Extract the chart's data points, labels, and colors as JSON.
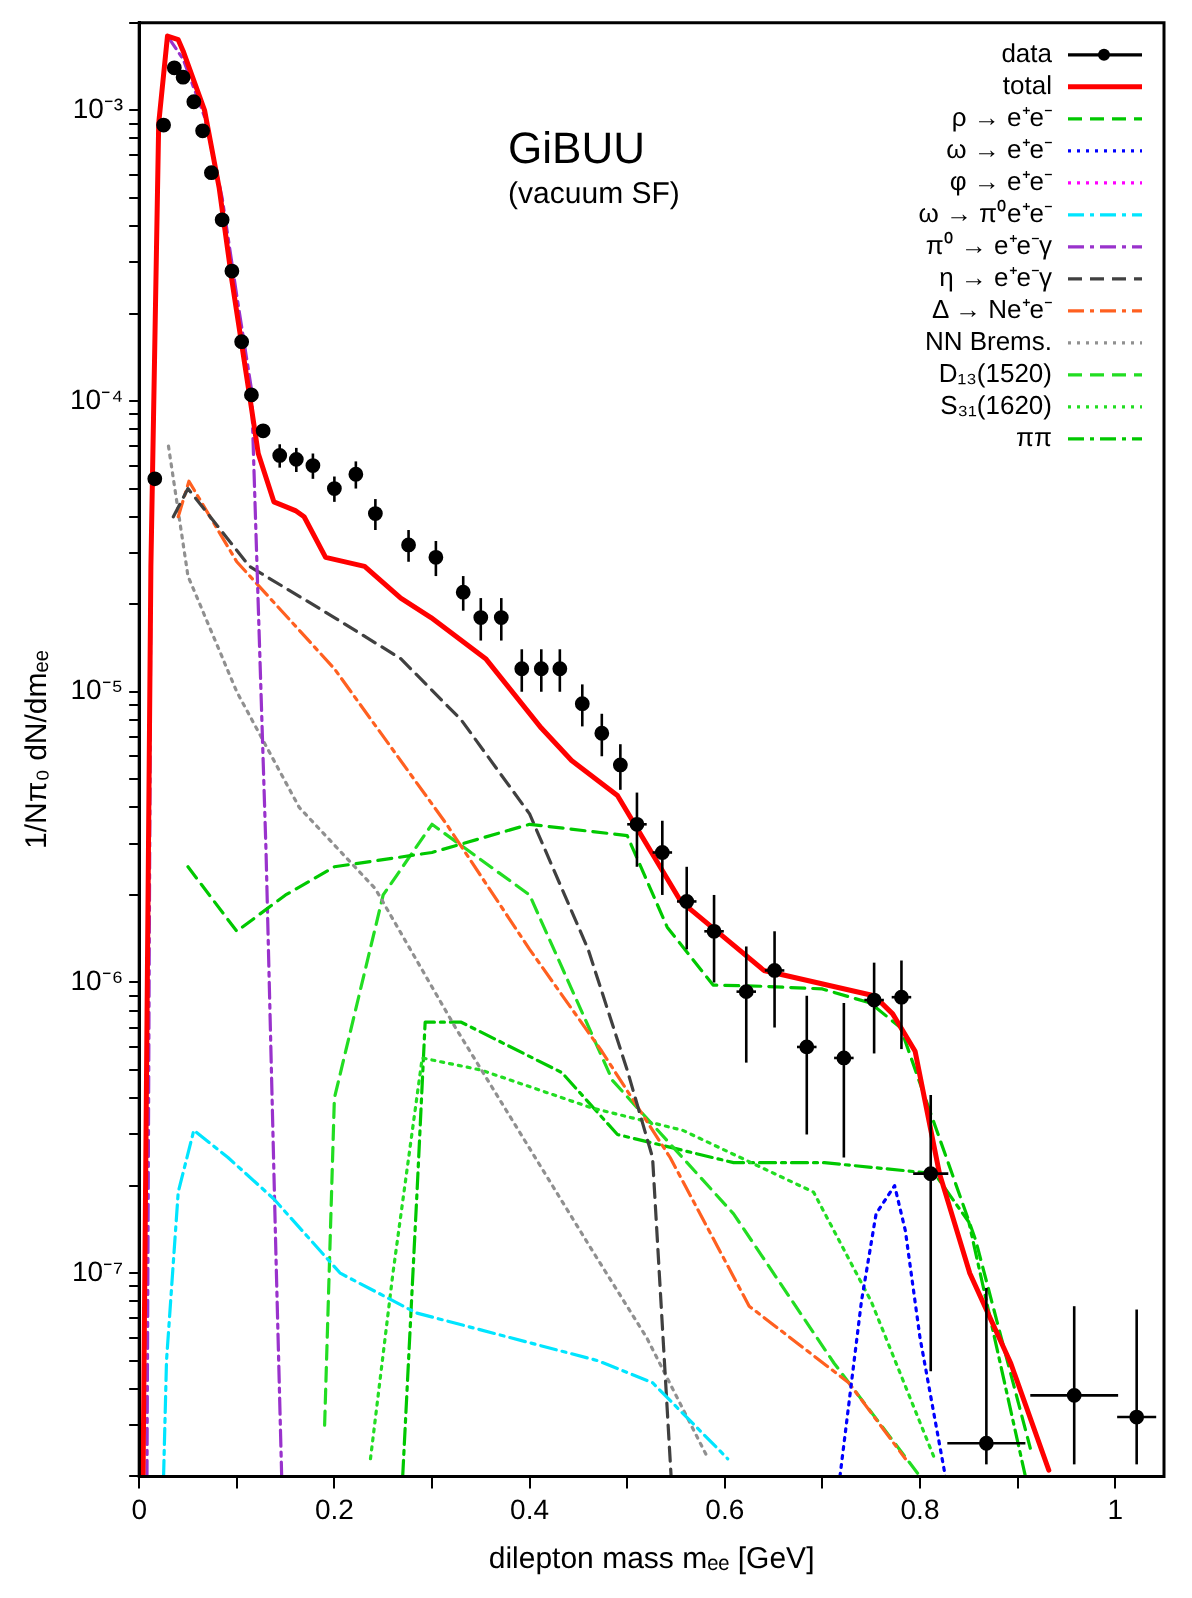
{
  "chart_data": {
    "type": "line",
    "xlabel": "dilepton mass mₑₑ [GeV]",
    "ylabel": "1/Nπ₀ dN/dmₑₑ",
    "log": "y",
    "grid": false,
    "legend": "top right",
    "xlim": [
      0,
      1.05
    ],
    "xticks": [
      0,
      {
        "value": 0.1,
        "label": null
      },
      0.2,
      {
        "value": 0.3,
        "label": null
      },
      0.4,
      {
        "value": 0.5,
        "label": null
      },
      0.6,
      {
        "value": 0.7,
        "label": null
      },
      0.8,
      {
        "value": 0.9,
        "label": null
      },
      1
    ],
    "ylim": [
      2e-08,
      0.002
    ],
    "yticks": [
      {
        "value": 2e-08,
        "label": null
      },
      {
        "value": 3e-08,
        "label": null
      },
      {
        "value": 4e-08,
        "label": null
      },
      {
        "value": 5e-08,
        "label": null
      },
      {
        "value": 6e-08,
        "label": null
      },
      {
        "value": 7e-08,
        "label": null
      },
      {
        "value": 8e-08,
        "label": null
      },
      {
        "value": 9e-08,
        "label": null
      },
      {
        "value": 1e-07,
        "label": "10⁻⁷"
      },
      {
        "value": 2e-07,
        "label": null
      },
      {
        "value": 3e-07,
        "label": null
      },
      {
        "value": 4e-07,
        "label": null
      },
      {
        "value": 5e-07,
        "label": null
      },
      {
        "value": 6e-07,
        "label": null
      },
      {
        "value": 7e-07,
        "label": null
      },
      {
        "value": 8e-07,
        "label": null
      },
      {
        "value": 9e-07,
        "label": null
      },
      {
        "value": 1e-06,
        "label": "10⁻⁶"
      },
      {
        "value": 2e-06,
        "label": null
      },
      {
        "value": 3e-06,
        "label": null
      },
      {
        "value": 4e-06,
        "label": null
      },
      {
        "value": 5e-06,
        "label": null
      },
      {
        "value": 6e-06,
        "label": null
      },
      {
        "value": 7e-06,
        "label": null
      },
      {
        "value": 8e-06,
        "label": null
      },
      {
        "value": 9e-06,
        "label": null
      },
      {
        "value": 1e-05,
        "label": "10⁻⁵"
      },
      {
        "value": 2e-05,
        "label": null
      },
      {
        "value": 3e-05,
        "label": null
      },
      {
        "value": 4e-05,
        "label": null
      },
      {
        "value": 5e-05,
        "label": null
      },
      {
        "value": 6e-05,
        "label": null
      },
      {
        "value": 7e-05,
        "label": null
      },
      {
        "value": 8e-05,
        "label": null
      },
      {
        "value": 9e-05,
        "label": null
      },
      {
        "value": 0.0001,
        "label": "10⁻⁴"
      },
      {
        "value": 0.0002,
        "label": null
      },
      {
        "value": 0.0003,
        "label": null
      },
      {
        "value": 0.0004,
        "label": null
      },
      {
        "value": 0.0005,
        "label": null
      },
      {
        "value": 0.0006,
        "label": null
      },
      {
        "value": 0.0007,
        "label": null
      },
      {
        "value": 0.0008,
        "label": null
      },
      {
        "value": 0.0009,
        "label": null
      },
      {
        "value": 0.001,
        "label": "10⁻³"
      },
      {
        "value": 0.002,
        "label": null
      }
    ],
    "annotations": [
      "GiBUU",
      "(vacuum SF)"
    ],
    "series": [
      {
        "name": "data",
        "type": "scatter",
        "marker": "circle",
        "color": "#000000",
        "x": [
          0.016,
          0.025,
          0.036,
          0.045,
          0.056,
          0.065,
          0.074,
          0.085,
          0.095,
          0.105,
          0.115,
          0.127,
          0.144,
          0.161,
          0.178,
          0.2,
          0.222,
          0.242,
          0.276,
          0.304,
          0.332,
          0.35,
          0.371,
          0.392,
          0.412,
          0.431,
          0.454,
          0.474,
          0.493,
          0.51,
          0.536,
          0.561,
          0.589,
          0.622,
          0.651,
          0.684,
          0.722,
          0.753,
          0.781,
          0.811,
          0.868,
          0.958,
          1.022
        ],
        "values": [
          5.4e-05,
          0.00089,
          0.0014,
          0.0013,
          0.00107,
          0.00085,
          0.00061,
          0.00042,
          0.00028,
          0.00016,
          0.000105,
          7.9e-05,
          6.5e-05,
          6.3e-05,
          6e-05,
          5e-05,
          5.6e-05,
          4.1e-05,
          3.2e-05,
          2.9e-05,
          2.2e-05,
          1.8e-05,
          1.8e-05,
          1.2e-05,
          1.2e-05,
          1.2e-05,
          9.1e-06,
          7.2e-06,
          5.6e-06,
          3.5e-06,
          2.8e-06,
          1.9e-06,
          1.5e-06,
          9.3e-07,
          1.1e-06,
          6e-07,
          5.5e-07,
          8.7e-07,
          8.9e-07,
          2.2e-07,
          2.6e-08,
          3.8e-08,
          3.2e-08
        ],
        "errors": [
          null,
          null,
          null,
          null,
          null,
          null,
          null,
          null,
          null,
          null,
          null,
          null,
          6e-06,
          6e-06,
          6e-06,
          5e-06,
          6e-06,
          5e-06,
          4e-06,
          4e-06,
          3e-06,
          3e-06,
          3e-06,
          2e-06,
          2e-06,
          2e-06,
          1.5e-06,
          1.2e-06,
          1e-06,
          1e-06,
          8e-07,
          6e-07,
          5e-07,
          4e-07,
          4e-07,
          3e-07,
          3e-07,
          3e-07,
          3e-07,
          [
            4.6e-08,
            4.1e-07
          ],
          [
            2.2e-08,
            8.9e-08
          ],
          [
            2.2e-08,
            7.7e-08
          ],
          [
            2.2e-08,
            7.5e-08
          ]
        ],
        "xerrors": [
          null,
          null,
          null,
          null,
          null,
          null,
          null,
          null,
          null,
          null,
          null,
          null,
          0.005,
          0.005,
          0.005,
          0.005,
          0.005,
          0.005,
          0.005,
          0.005,
          0.005,
          0.005,
          0.005,
          0.005,
          0.005,
          0.005,
          0.005,
          0.005,
          0.005,
          0.01,
          0.01,
          0.01,
          0.01,
          0.01,
          0.01,
          0.01,
          0.01,
          0.01,
          0.01,
          0.018,
          0.04,
          0.045,
          0.02
        ]
      },
      {
        "name": "total",
        "marker": "none",
        "line_style": "solid",
        "color": "#ff0000",
        "x": [
          0.004,
          0.012,
          0.02,
          0.029,
          0.04,
          0.045,
          0.067,
          0.082,
          0.095,
          0.113,
          0.122,
          0.138,
          0.16,
          0.169,
          0.191,
          0.231,
          0.268,
          0.299,
          0.355,
          0.412,
          0.443,
          0.49,
          0.555,
          0.64,
          0.753,
          0.772,
          0.795,
          0.82,
          0.851,
          0.893,
          0.932
        ],
        "values": [
          2e-08,
          2.7e-05,
          0.0009,
          0.0018,
          0.00175,
          0.0016,
          0.001,
          0.00054,
          0.00026,
          0.000105,
          6.6e-05,
          4.5e-05,
          4.2e-05,
          4e-05,
          2.9e-05,
          2.7e-05,
          2.1e-05,
          1.8e-05,
          1.3e-05,
          7.5e-06,
          5.8e-06,
          4.4e-06,
          1.9e-06,
          1.1e-06,
          9e-07,
          7.8e-07,
          5.8e-07,
          2.2e-07,
          1e-07,
          4.9e-08,
          2.1e-08
        ]
      },
      {
        "name": "ρ → e⁺e⁻",
        "marker": "none",
        "line_style": "dashed",
        "color": "#00c800",
        "x": [
          0.05,
          0.1,
          0.15,
          0.2,
          0.3,
          0.4,
          0.5,
          0.541,
          0.588,
          0.64,
          0.7,
          0.749,
          0.78,
          0.8,
          0.857,
          0.913
        ],
        "values": [
          2.5e-06,
          1.5e-06,
          2e-06,
          2.5e-06,
          2.8e-06,
          3.5e-06,
          3.2e-06,
          1.55e-06,
          9.8e-07,
          9.7e-07,
          9.5e-07,
          8.5e-07,
          7e-07,
          4.5e-07,
          1.3e-07,
          2.5e-08
        ]
      },
      {
        "name": "ω → e⁺e⁻",
        "marker": "none",
        "line_style": "dotted",
        "color": "#0000ff",
        "x": [
          0.718,
          0.74,
          0.755,
          0.774,
          0.785,
          0.8,
          0.826
        ],
        "values": [
          2e-08,
          8e-08,
          1.6e-07,
          2e-07,
          1.4e-07,
          6e-08,
          2e-08
        ]
      },
      {
        "name": "φ → e⁺e⁻",
        "marker": "none",
        "line_style": "dotted",
        "color": "#ff00ff"
      },
      {
        "name": "ω → π⁰e⁺e⁻",
        "marker": "none",
        "line_style": "dashdot",
        "color": "#00e5ff",
        "x": [
          0.025,
          0.028,
          0.04,
          0.056,
          0.091,
          0.138,
          0.206,
          0.284,
          0.47,
          0.526,
          0.603
        ],
        "values": [
          2e-08,
          5e-08,
          1.9e-07,
          3.1e-07,
          2.5e-07,
          1.8e-07,
          1e-07,
          7.3e-08,
          5e-08,
          4.2e-08,
          2.3e-08
        ]
      },
      {
        "name": "π⁰ → e⁺e⁻γ",
        "marker": "none",
        "line_style": "dashdot",
        "color": "#9932cc",
        "x": [
          0.008,
          0.012,
          0.02,
          0.029,
          0.045,
          0.067,
          0.085,
          0.1,
          0.115,
          0.13,
          0.14,
          0.146
        ],
        "values": [
          2e-08,
          2.5e-05,
          0.0009,
          0.0018,
          0.0015,
          0.00095,
          0.0005,
          0.00023,
          0.00011,
          2.8e-06,
          1.2e-07,
          2e-08
        ]
      },
      {
        "name": "η → e⁺e⁻γ",
        "marker": "none",
        "line_style": "dashed",
        "color": "#404040",
        "x": [
          0.035,
          0.05,
          0.113,
          0.2,
          0.268,
          0.33,
          0.4,
          0.46,
          0.5,
          0.526,
          0.545
        ],
        "values": [
          4e-05,
          5e-05,
          2.7e-05,
          1.8e-05,
          1.3e-05,
          8e-06,
          3.8e-06,
          1.3e-06,
          5e-07,
          2.5e-07,
          2e-08
        ]
      },
      {
        "name": "Δ → Ne⁺e⁻",
        "marker": "none",
        "line_style": "dashdot",
        "color": "#ff6020",
        "x": [
          0.04,
          0.051,
          0.1,
          0.2,
          0.315,
          0.4,
          0.474,
          0.544,
          0.625,
          0.727,
          0.785
        ],
        "values": [
          4e-05,
          5.3e-05,
          2.8e-05,
          1.2e-05,
          3.5e-06,
          1.3e-06,
          5.8e-07,
          2.5e-07,
          7.7e-08,
          4.2e-08,
          2.3e-08
        ]
      },
      {
        "name": "NN Brems.",
        "marker": "none",
        "line_style": "dotted",
        "color": "#909090",
        "x": [
          0.03,
          0.05,
          0.1,
          0.164,
          0.242,
          0.324,
          0.464,
          0.52,
          0.583
        ],
        "values": [
          7e-05,
          2.5e-05,
          1e-05,
          4e-06,
          2.1e-06,
          7e-07,
          1.2e-07,
          6e-08,
          2.3e-08
        ]
      },
      {
        "name": "D₁₃(1520)",
        "marker": "none",
        "line_style": "dashed",
        "color": "#22dd22",
        "x": [
          0.19,
          0.2,
          0.25,
          0.3,
          0.4,
          0.485,
          0.609,
          0.712,
          0.8
        ],
        "values": [
          3e-08,
          4e-07,
          2e-06,
          3.5e-06,
          2e-06,
          4.6e-07,
          1.6e-07,
          4.9e-08,
          2e-08
        ]
      },
      {
        "name": "S₃₁(1620)",
        "marker": "none",
        "line_style": "dotted",
        "color": "#22dd22",
        "x": [
          0.237,
          0.26,
          0.29,
          0.35,
          0.464,
          0.557,
          0.691,
          0.75,
          0.815
        ],
        "values": [
          2.3e-08,
          1e-07,
          5.5e-07,
          5e-07,
          3.7e-07,
          3.1e-07,
          1.9e-07,
          8e-08,
          2.3e-08
        ]
      },
      {
        "name": "ππ",
        "marker": "none",
        "line_style": "dashdot",
        "color": "#00c800",
        "x": [
          0.27,
          0.285,
          0.293,
          0.33,
          0.433,
          0.49,
          0.609,
          0.702,
          0.815,
          0.85,
          0.908
        ],
        "values": [
          2e-08,
          2e-07,
          7.3e-07,
          7.3e-07,
          4.9e-07,
          3e-07,
          2.4e-07,
          2.4e-07,
          2.2e-07,
          1.5e-07,
          2e-08
        ]
      }
    ]
  }
}
